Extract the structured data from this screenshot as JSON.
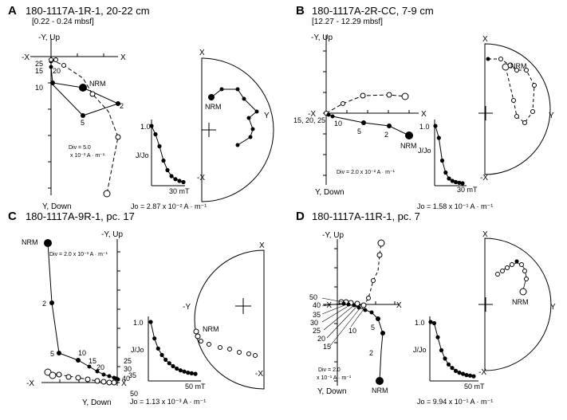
{
  "panels": [
    {
      "letter": "A",
      "title": "180-1117A-1R-1, 20-22 cm",
      "depth": "[0.22 - 0.24 mbsf]",
      "zij": {
        "label_top": "-Y, Up",
        "label_bottom": "Y, Down",
        "label_left": "-X",
        "label_right": "X",
        "div": "Div = 5.0",
        "div_unit": "x 10⁻³ A · m⁻¹",
        "steps": [
          "25",
          "15",
          "20",
          "10",
          "NRM",
          "2",
          "5"
        ]
      },
      "decay": {
        "ylabel": "J/Jo",
        "ytick": "1.0",
        "xlabel": "30 mT",
        "jo": "Jo = 2.87 x 10⁻² A · m⁻¹",
        "values": [
          1.0,
          0.86,
          0.66,
          0.42,
          0.26,
          0.16,
          0.11,
          0.08,
          0.06
        ]
      },
      "stereo": {
        "top": "X",
        "bottom": "-X",
        "side": "Y",
        "label": "NRM"
      }
    },
    {
      "letter": "B",
      "title": "180-1117A-2R-CC, 7-9 cm",
      "depth": "[12.27 - 12.29 mbsf]",
      "zij": {
        "label_top": "-Y, Up",
        "label_bottom": "Y, Down",
        "label_left": "-X",
        "label_right": "X",
        "div": "Div = 2.0 x 10⁻² A · m⁻¹",
        "steps": [
          "15, 20, 25",
          "10",
          "5",
          "2",
          "NRM"
        ]
      },
      "decay": {
        "ylabel": "J/Jo",
        "ytick": "1.0",
        "xlabel": "30 mT",
        "jo": "Jo = 1.58 x 10⁻¹ A · m⁻¹",
        "values": [
          1.0,
          0.8,
          0.42,
          0.22,
          0.12,
          0.08,
          0.06,
          0.05,
          0.04
        ]
      },
      "stereo": {
        "top": "X",
        "bottom": "-X",
        "side": "Y",
        "label": "NRM"
      }
    },
    {
      "letter": "C",
      "title": "180-1117A-9R-1, pc. 17",
      "zij": {
        "label_top": "-Y, Up",
        "label_bottom": "Y, Down",
        "label_left": "-X",
        "label_right": "X",
        "div": "Div = 2.0 x 10⁻³ A · m⁻¹",
        "steps": [
          "NRM",
          "2",
          "5",
          "10",
          "15",
          "20",
          "25",
          "30",
          "35",
          "40",
          "50"
        ]
      },
      "decay": {
        "ylabel": "J/Jo",
        "ytick": "1.0",
        "xlabel": "50 mT",
        "jo": "Jo = 1.13 x 10⁻³ A · m⁻¹",
        "values": [
          1.0,
          0.72,
          0.55,
          0.44,
          0.36,
          0.3,
          0.25,
          0.21,
          0.18,
          0.16,
          0.14,
          0.13,
          0.12
        ]
      },
      "stereo": {
        "top": "X",
        "bottom": "-X",
        "side": "-Y",
        "label": "NRM"
      }
    },
    {
      "letter": "D",
      "title": "180-1117A-11R-1, pc. 7",
      "zij": {
        "label_top": "-Y, Up",
        "label_bottom": "Y, Down",
        "label_left": "-X",
        "label_right": "X",
        "div": "Div = 2.0",
        "div_unit": "x 10⁻¹ A · m⁻¹",
        "steps": [
          "50",
          "40",
          "35",
          "30",
          "25",
          "20",
          "15",
          "10",
          "5",
          "2",
          "NRM"
        ]
      },
      "decay": {
        "ylabel": "J/Jo",
        "ytick": "1.0",
        "xlabel": "50 mT",
        "jo": "Jo = 9.94 x 10⁻¹ A · m⁻¹",
        "values": [
          1.0,
          0.98,
          0.74,
          0.52,
          0.38,
          0.28,
          0.22,
          0.17,
          0.14,
          0.12,
          0.1,
          0.09,
          0.08
        ]
      },
      "stereo": {
        "top": "X",
        "bottom": "-X",
        "side": "Y",
        "label": "NRM"
      }
    }
  ]
}
